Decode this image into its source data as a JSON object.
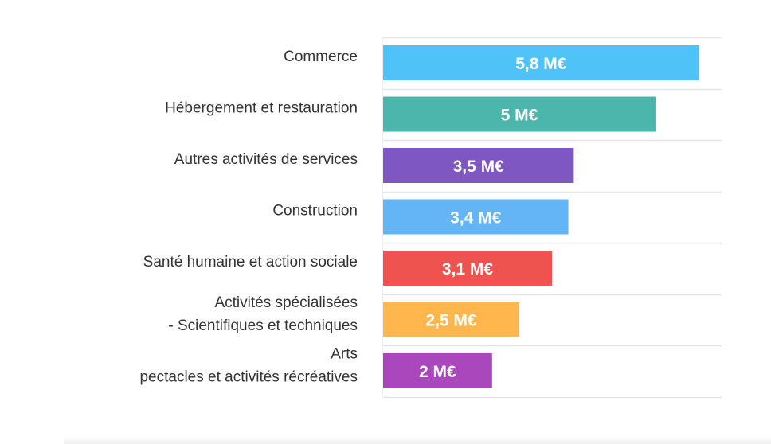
{
  "chart_data": {
    "type": "bar",
    "orientation": "horizontal",
    "categories": [
      [
        "Commerce"
      ],
      [
        "Hébergement et restauration"
      ],
      [
        "Autres activités de services"
      ],
      [
        "Construction"
      ],
      [
        "Santé humaine et action sociale"
      ],
      [
        "Activités spécialisées",
        "- Scientifiques et techniques"
      ],
      [
        "Arts",
        "pectacles et activités récréatives"
      ]
    ],
    "values": [
      5.8,
      5,
      3.5,
      3.4,
      3.1,
      2.5,
      2
    ],
    "value_labels": [
      "5,8 M€",
      "5 M€",
      "3,5 M€",
      "3,4 M€",
      "3,1 M€",
      "2,5 M€",
      "2 M€"
    ],
    "colors": [
      "#4fc3f7",
      "#4db6ac",
      "#7e57c2",
      "#64b5f6",
      "#ef5350",
      "#ffb74d",
      "#ab47bc"
    ],
    "xlim": [
      0,
      6
    ],
    "grid": true,
    "legend": "none",
    "title": "",
    "xlabel": "",
    "ylabel": ""
  }
}
